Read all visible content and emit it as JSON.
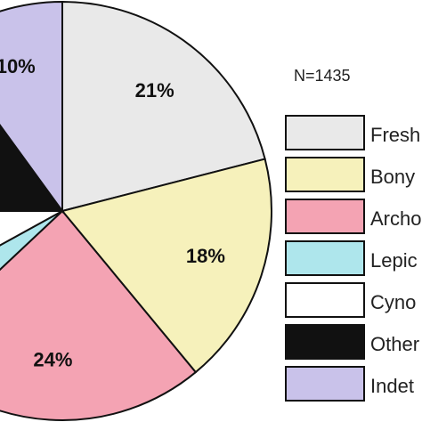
{
  "chart_data": {
    "type": "pie",
    "annotation": "N=1435",
    "categories": [
      "Fresh",
      "Bony",
      "Archo",
      "Lepic",
      "Cyno",
      "Other",
      "Indet"
    ],
    "values": [
      21,
      18,
      24,
      4,
      8,
      15,
      10
    ],
    "value_labels": [
      "21%",
      "18%",
      "24%",
      null,
      null,
      null,
      "10%"
    ],
    "colors": [
      "#e9e9e9",
      "#f6f1bb",
      "#f4a3b3",
      "#aee6ec",
      "#ffffff",
      "#111111",
      "#c9c2ea"
    ]
  }
}
